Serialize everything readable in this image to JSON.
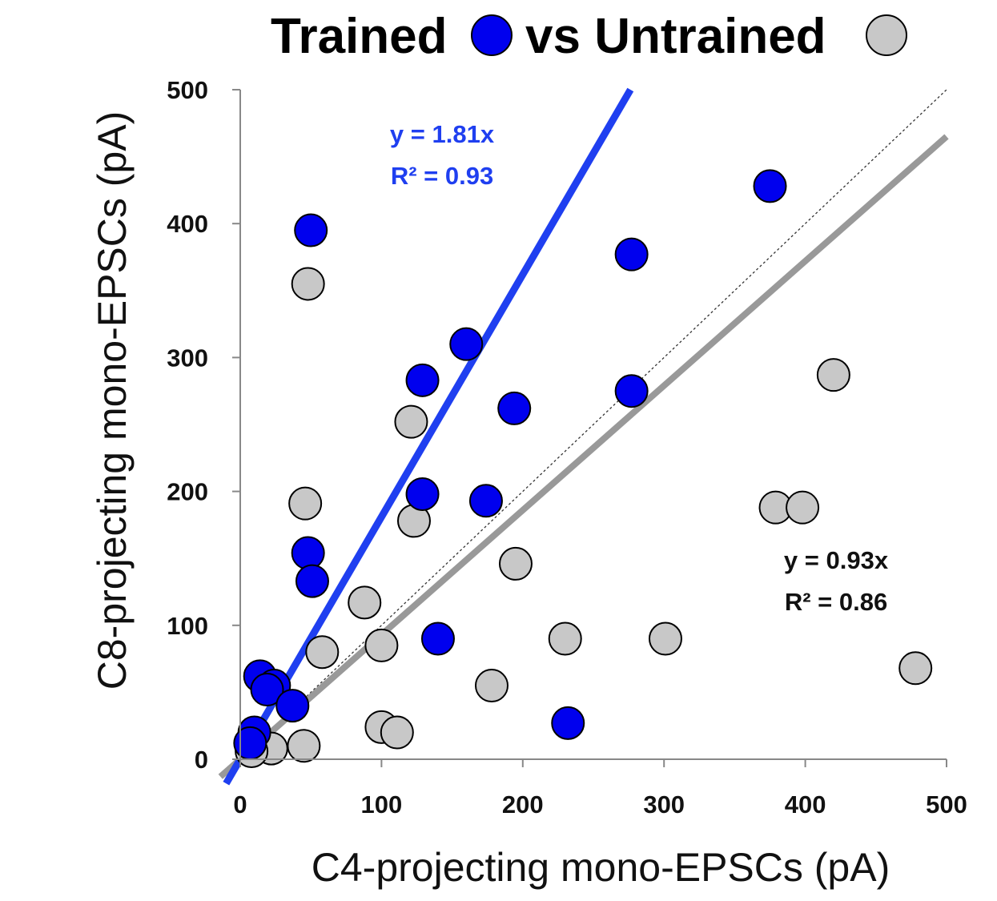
{
  "chart_data": {
    "type": "scatter",
    "title": {
      "part1": "Trained",
      "part2": "vs Untrained"
    },
    "xlabel": "C4-projecting mono-EPSCs (pA)",
    "ylabel": "C8-projecting mono-EPSCs (pA)",
    "xlim": [
      0,
      500
    ],
    "ylim": [
      0,
      500
    ],
    "x_ticks": [
      "0",
      "100",
      "200",
      "300",
      "400",
      "500"
    ],
    "y_ticks": [
      "0",
      "100",
      "200",
      "300",
      "400",
      "500"
    ],
    "grid": false,
    "legend_position": "title",
    "series": [
      {
        "name": "Trained",
        "color": "#0000ee",
        "points": [
          [
            50,
            395
          ],
          [
            375,
            428
          ],
          [
            277,
            377
          ],
          [
            160,
            310
          ],
          [
            129,
            283
          ],
          [
            277,
            275
          ],
          [
            194,
            262
          ],
          [
            129,
            198
          ],
          [
            174,
            193
          ],
          [
            48,
            154
          ],
          [
            51,
            133
          ],
          [
            140,
            90
          ],
          [
            14,
            62
          ],
          [
            24,
            55
          ],
          [
            19,
            52
          ],
          [
            37,
            40
          ],
          [
            10,
            20
          ],
          [
            7,
            12
          ],
          [
            232,
            27
          ]
        ],
        "fit": {
          "slope": 1.81,
          "equation": "y = 1.81x",
          "r2_text": "R² = 0.93",
          "color": "#1f3ff0"
        }
      },
      {
        "name": "Untrained",
        "color": "#c8c8c8",
        "points": [
          [
            48,
            355
          ],
          [
            420,
            287
          ],
          [
            121,
            252
          ],
          [
            123,
            178
          ],
          [
            46,
            191
          ],
          [
            379,
            188
          ],
          [
            398,
            188
          ],
          [
            195,
            146
          ],
          [
            88,
            117
          ],
          [
            58,
            80
          ],
          [
            100,
            85
          ],
          [
            230,
            90
          ],
          [
            301,
            90
          ],
          [
            478,
            68
          ],
          [
            178,
            55
          ],
          [
            100,
            24
          ],
          [
            111,
            20
          ],
          [
            45,
            10
          ],
          [
            22,
            8
          ],
          [
            8,
            6
          ]
        ],
        "fit": {
          "slope": 0.93,
          "equation": "y = 0.93x",
          "r2_text": "R² = 0.86",
          "color": "#999999"
        }
      }
    ],
    "reference_line": {
      "slope": 1,
      "style": "dotted"
    }
  }
}
